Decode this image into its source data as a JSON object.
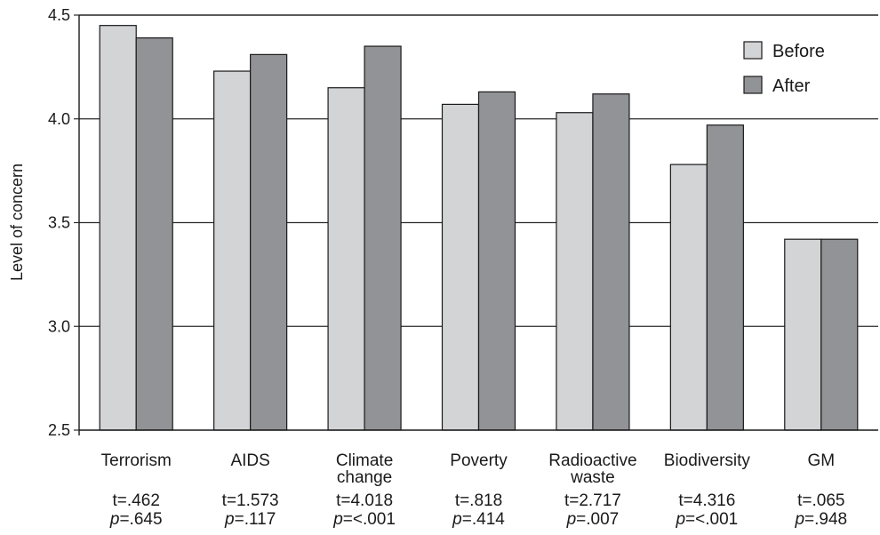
{
  "chart_data": {
    "type": "bar",
    "ylabel": "Level of concern",
    "ylim": [
      2.5,
      4.5
    ],
    "yticks": [
      "2.5",
      "3.0",
      "3.5",
      "4.0",
      "4.5"
    ],
    "grid": "horizontal",
    "legend_position": "top-right",
    "categories": [
      [
        "Terrorism"
      ],
      [
        "AIDS"
      ],
      [
        "Climate",
        "change"
      ],
      [
        "Poverty"
      ],
      [
        "Radioactive",
        "waste"
      ],
      [
        "Biodiversity"
      ],
      [
        "GM"
      ]
    ],
    "series": [
      {
        "name": "Before",
        "color": "#d3d4d6",
        "values": [
          4.45,
          4.23,
          4.15,
          4.07,
          4.03,
          3.78,
          3.42
        ]
      },
      {
        "name": "After",
        "color": "#929396",
        "values": [
          4.39,
          4.31,
          4.35,
          4.13,
          4.12,
          3.97,
          3.42
        ]
      }
    ],
    "stats": [
      {
        "t": "t=.462",
        "p": ".645"
      },
      {
        "t": "t=1.573",
        "p": ".117"
      },
      {
        "t": "t=4.018",
        "p": "=<.001"
      },
      {
        "t": "t=.818",
        "p": ".414"
      },
      {
        "t": "t=2.717",
        "p": ".007"
      },
      {
        "t": "t=4.316",
        "p": "=<.001"
      },
      {
        "t": "t=.065",
        "p": ".948"
      }
    ],
    "p_prefix": "p",
    "p_sep": "="
  }
}
